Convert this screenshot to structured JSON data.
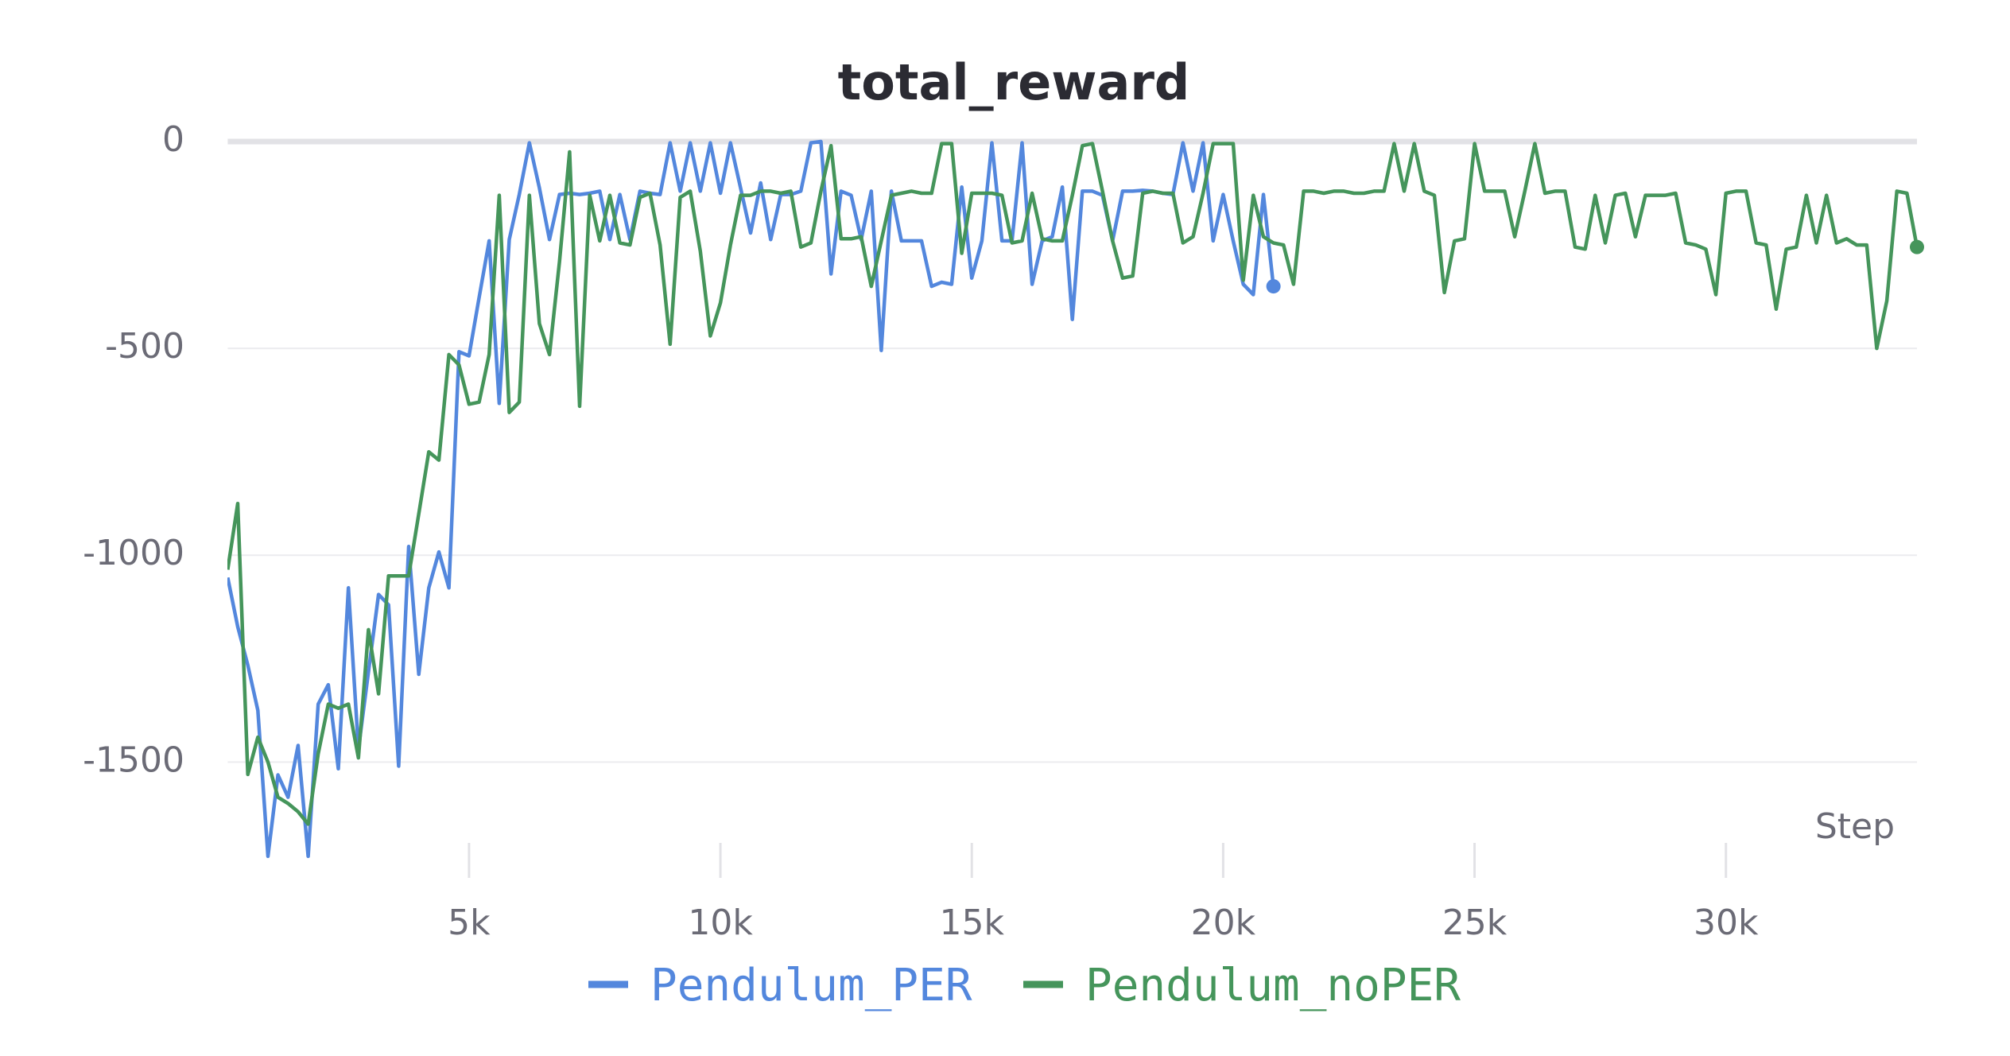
{
  "chart_data": {
    "type": "line",
    "title": "total_reward",
    "x_label": "Step",
    "xlim": [
      200,
      33800
    ],
    "ylim": [
      -1780,
      0
    ],
    "xticks": [
      {
        "value": 5000,
        "label": "5k"
      },
      {
        "value": 10000,
        "label": "10k"
      },
      {
        "value": 15000,
        "label": "15k"
      },
      {
        "value": 20000,
        "label": "20k"
      },
      {
        "value": 25000,
        "label": "25k"
      },
      {
        "value": 30000,
        "label": "30k"
      }
    ],
    "yticks": [
      0,
      -500,
      -1000,
      -1500
    ],
    "grid": true,
    "legend": "bottom",
    "series": [
      {
        "name": "Pendulum_PER",
        "color": "#5387dd",
        "x": [
          200,
          400,
          600,
          800,
          1000,
          1200,
          1400,
          1600,
          1800,
          2000,
          2200,
          2400,
          2600,
          2800,
          3000,
          3200,
          3400,
          3600,
          3800,
          4000,
          4200,
          4400,
          4600,
          4800,
          5000,
          5200,
          5400,
          5600,
          5800,
          6000,
          6200,
          6400,
          6600,
          6800,
          7000,
          7200,
          7400,
          7600,
          7800,
          8000,
          8200,
          8400,
          8600,
          8800,
          9000,
          9200,
          9400,
          9600,
          9800,
          10000,
          10200,
          10400,
          10600,
          10800,
          11000,
          11200,
          11400,
          11600,
          11800,
          12000,
          12200,
          12400,
          12600,
          12800,
          13000,
          13200,
          13400,
          13600,
          13800,
          14000,
          14200,
          14400,
          14600,
          14800,
          15000,
          15200,
          15400,
          15600,
          15800,
          16000,
          16200,
          16400,
          16600,
          16800,
          17000,
          17200,
          17400,
          17600,
          17800,
          18000,
          18200,
          18400,
          18600,
          18800,
          19000,
          19200,
          19400,
          19600,
          19800,
          20000,
          20200,
          20400,
          20600,
          20800,
          21000
        ],
        "values": [
          -1054,
          -1173,
          -1266,
          -1375,
          -1728,
          -1531,
          -1585,
          -1460,
          -1728,
          -1360,
          -1313,
          -1516,
          -1079,
          -1469,
          -1282,
          -1095,
          -1120,
          -1510,
          -979,
          -1288,
          -1079,
          -992,
          -1079,
          -508,
          -518,
          -377,
          -240,
          -633,
          -237,
          -128,
          -3,
          -112,
          -237,
          -128,
          -125,
          -128,
          -125,
          -120,
          -237,
          -128,
          -237,
          -120,
          -125,
          -128,
          -3,
          -120,
          -3,
          -120,
          -3,
          -125,
          -3,
          -112,
          -221,
          -100,
          -237,
          -128,
          -128,
          -120,
          -3,
          0,
          -320,
          -120,
          -130,
          -237,
          -120,
          -505,
          -120,
          -240,
          -240,
          -240,
          -350,
          -340,
          -345,
          -110,
          -330,
          -240,
          -3,
          -240,
          -240,
          -3,
          -345,
          -240,
          -230,
          -110,
          -430,
          -120,
          -120,
          -130,
          -240,
          -120,
          -120,
          -118,
          -120,
          -125,
          -128,
          -3,
          -120,
          -3,
          -240,
          -128,
          -240,
          -345,
          -370,
          -128,
          -350
        ]
      },
      {
        "name": "Pendulum_noPER",
        "color": "#45955b",
        "x": [
          200,
          400,
          600,
          800,
          1000,
          1200,
          1400,
          1600,
          1800,
          2000,
          2200,
          2400,
          2600,
          2800,
          3000,
          3200,
          3400,
          3600,
          3800,
          4000,
          4200,
          4400,
          4600,
          4800,
          5000,
          5200,
          5400,
          5600,
          5800,
          6000,
          6200,
          6400,
          6600,
          6800,
          7000,
          7200,
          7400,
          7600,
          7800,
          8000,
          8200,
          8400,
          8600,
          8800,
          9000,
          9200,
          9400,
          9600,
          9800,
          10000,
          10200,
          10400,
          10600,
          10800,
          11000,
          11200,
          11400,
          11600,
          11800,
          12000,
          12200,
          12400,
          12600,
          12800,
          13000,
          13200,
          13400,
          13600,
          13800,
          14000,
          14200,
          14400,
          14600,
          14800,
          15000,
          15200,
          15400,
          15600,
          15800,
          16000,
          16200,
          16400,
          16600,
          16800,
          17000,
          17200,
          17400,
          17600,
          17800,
          18000,
          18200,
          18400,
          18600,
          18800,
          19000,
          19200,
          19400,
          19600,
          19800,
          20000,
          20200,
          20400,
          20600,
          20800,
          21000,
          21200,
          21400,
          21600,
          21800,
          22000,
          22200,
          22400,
          22600,
          22800,
          23000,
          23200,
          23400,
          23600,
          23800,
          24000,
          24200,
          24400,
          24600,
          24800,
          25000,
          25200,
          25400,
          25600,
          25800,
          26000,
          26200,
          26400,
          26600,
          26800,
          27000,
          27200,
          27400,
          27600,
          27800,
          28000,
          28200,
          28400,
          28600,
          28800,
          29000,
          29200,
          29400,
          29600,
          29800,
          30000,
          30200,
          30400,
          30600,
          30800,
          31000,
          31200,
          31400,
          31600,
          31800,
          32000,
          32200,
          32400,
          32600,
          32800,
          33000,
          33200,
          33400,
          33600,
          33800
        ],
        "values": [
          -1035,
          -875,
          -1530,
          -1440,
          -1500,
          -1585,
          -1600,
          -1620,
          -1650,
          -1480,
          -1360,
          -1370,
          -1360,
          -1490,
          -1180,
          -1335,
          -1050,
          -1050,
          -1050,
          -900,
          -750,
          -770,
          -515,
          -540,
          -635,
          -630,
          -515,
          -130,
          -655,
          -630,
          -130,
          -440,
          -515,
          -290,
          -25,
          -640,
          -130,
          -240,
          -130,
          -245,
          -250,
          -135,
          -125,
          -250,
          -490,
          -135,
          -120,
          -265,
          -470,
          -390,
          -250,
          -130,
          -130,
          -120,
          -120,
          -125,
          -120,
          -255,
          -245,
          -120,
          -10,
          -235,
          -235,
          -230,
          -350,
          -240,
          -130,
          -125,
          -120,
          -125,
          -125,
          -5,
          -5,
          -270,
          -125,
          -125,
          -125,
          -130,
          -245,
          -240,
          -125,
          -235,
          -240,
          -240,
          -130,
          -10,
          -5,
          -120,
          -240,
          -330,
          -325,
          -125,
          -120,
          -125,
          -125,
          -245,
          -230,
          -125,
          -5,
          -5,
          -5,
          -335,
          -130,
          -230,
          -245,
          -250,
          -345,
          -120,
          -120,
          -125,
          -120,
          -120,
          -125,
          -125,
          -120,
          -120,
          -5,
          -120,
          -5,
          -120,
          -130,
          -365,
          -240,
          -235,
          -5,
          -120,
          -120,
          -120,
          -230,
          -120,
          -5,
          -125,
          -120,
          -120,
          -255,
          -260,
          -130,
          -245,
          -130,
          -125,
          -230,
          -130,
          -130,
          -130,
          -125,
          -245,
          -250,
          -260,
          -370,
          -125,
          -120,
          -120,
          -245,
          -250,
          -405,
          -260,
          -255,
          -130,
          -245,
          -130,
          -245,
          -235,
          -250,
          -250,
          -500,
          -385,
          -120,
          -125,
          -255
        ]
      }
    ]
  }
}
